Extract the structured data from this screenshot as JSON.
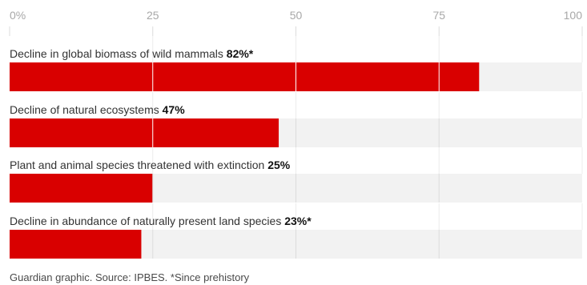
{
  "chart_data": {
    "type": "bar",
    "orientation": "horizontal",
    "xlim": [
      0,
      100
    ],
    "x_ticks": [
      {
        "value": 0,
        "label": "0%"
      },
      {
        "value": 25,
        "label": "25"
      },
      {
        "value": 50,
        "label": "50"
      },
      {
        "value": 75,
        "label": "75"
      },
      {
        "value": 100,
        "label": "100"
      }
    ],
    "categories": [
      {
        "label": "Decline in global biomass of wild mammals",
        "value": 82,
        "value_label": "82%*"
      },
      {
        "label": "Decline of natural ecosystems",
        "value": 47,
        "value_label": "47%"
      },
      {
        "label": "Plant and animal species threatened with extinction",
        "value": 25,
        "value_label": "25%"
      },
      {
        "label": "Decline in abundance of naturally present land species",
        "value": 23,
        "value_label": "23%*"
      }
    ],
    "colors": {
      "bar": "#d90000",
      "track": "#f2f2f2",
      "grid": "#dcdcdc"
    }
  },
  "footer": {
    "source": "Guardian graphic. Source: IPBES. *Since prehistory"
  }
}
